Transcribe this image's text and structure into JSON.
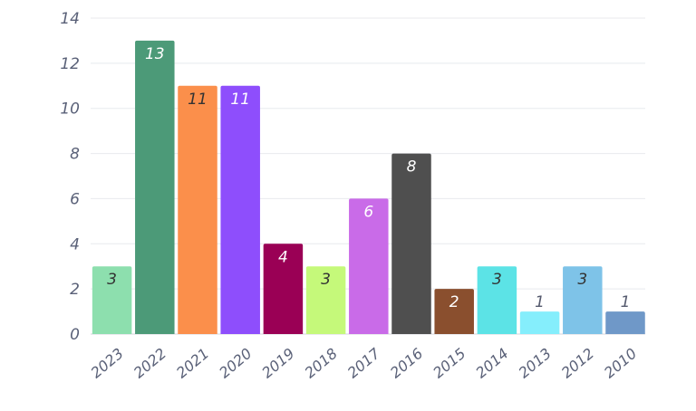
{
  "chart_data": {
    "type": "bar",
    "title": "",
    "xlabel": "",
    "ylabel": "",
    "categories": [
      "2023",
      "2022",
      "2021",
      "2020",
      "2019",
      "2018",
      "2017",
      "2016",
      "2015",
      "2014",
      "2013",
      "2012",
      "2010"
    ],
    "values": [
      3,
      13,
      11,
      11,
      4,
      3,
      6,
      8,
      2,
      3,
      1,
      3,
      1
    ],
    "colors": [
      "#8ddfae",
      "#4c9a78",
      "#fb8f4b",
      "#8e4efc",
      "#9a0055",
      "#c5f97a",
      "#c96be8",
      "#4f4f4f",
      "#8a4f2e",
      "#5ce3e6",
      "#85eefc",
      "#7ec3e8",
      "#6f98c8"
    ],
    "label_colors": [
      "#333333",
      "#ffffff",
      "#333333",
      "#ffffff",
      "#ffffff",
      "#333333",
      "#ffffff",
      "#ffffff",
      "#ffffff",
      "#333333",
      "#555a6e",
      "#333333",
      "#555a6e"
    ],
    "label_outside": [
      false,
      false,
      false,
      false,
      false,
      false,
      false,
      false,
      false,
      false,
      true,
      false,
      true
    ],
    "ylim": [
      0,
      14
    ],
    "yticks": [
      0,
      2,
      4,
      6,
      8,
      10,
      12,
      14
    ],
    "grid": true,
    "legend": "none"
  }
}
